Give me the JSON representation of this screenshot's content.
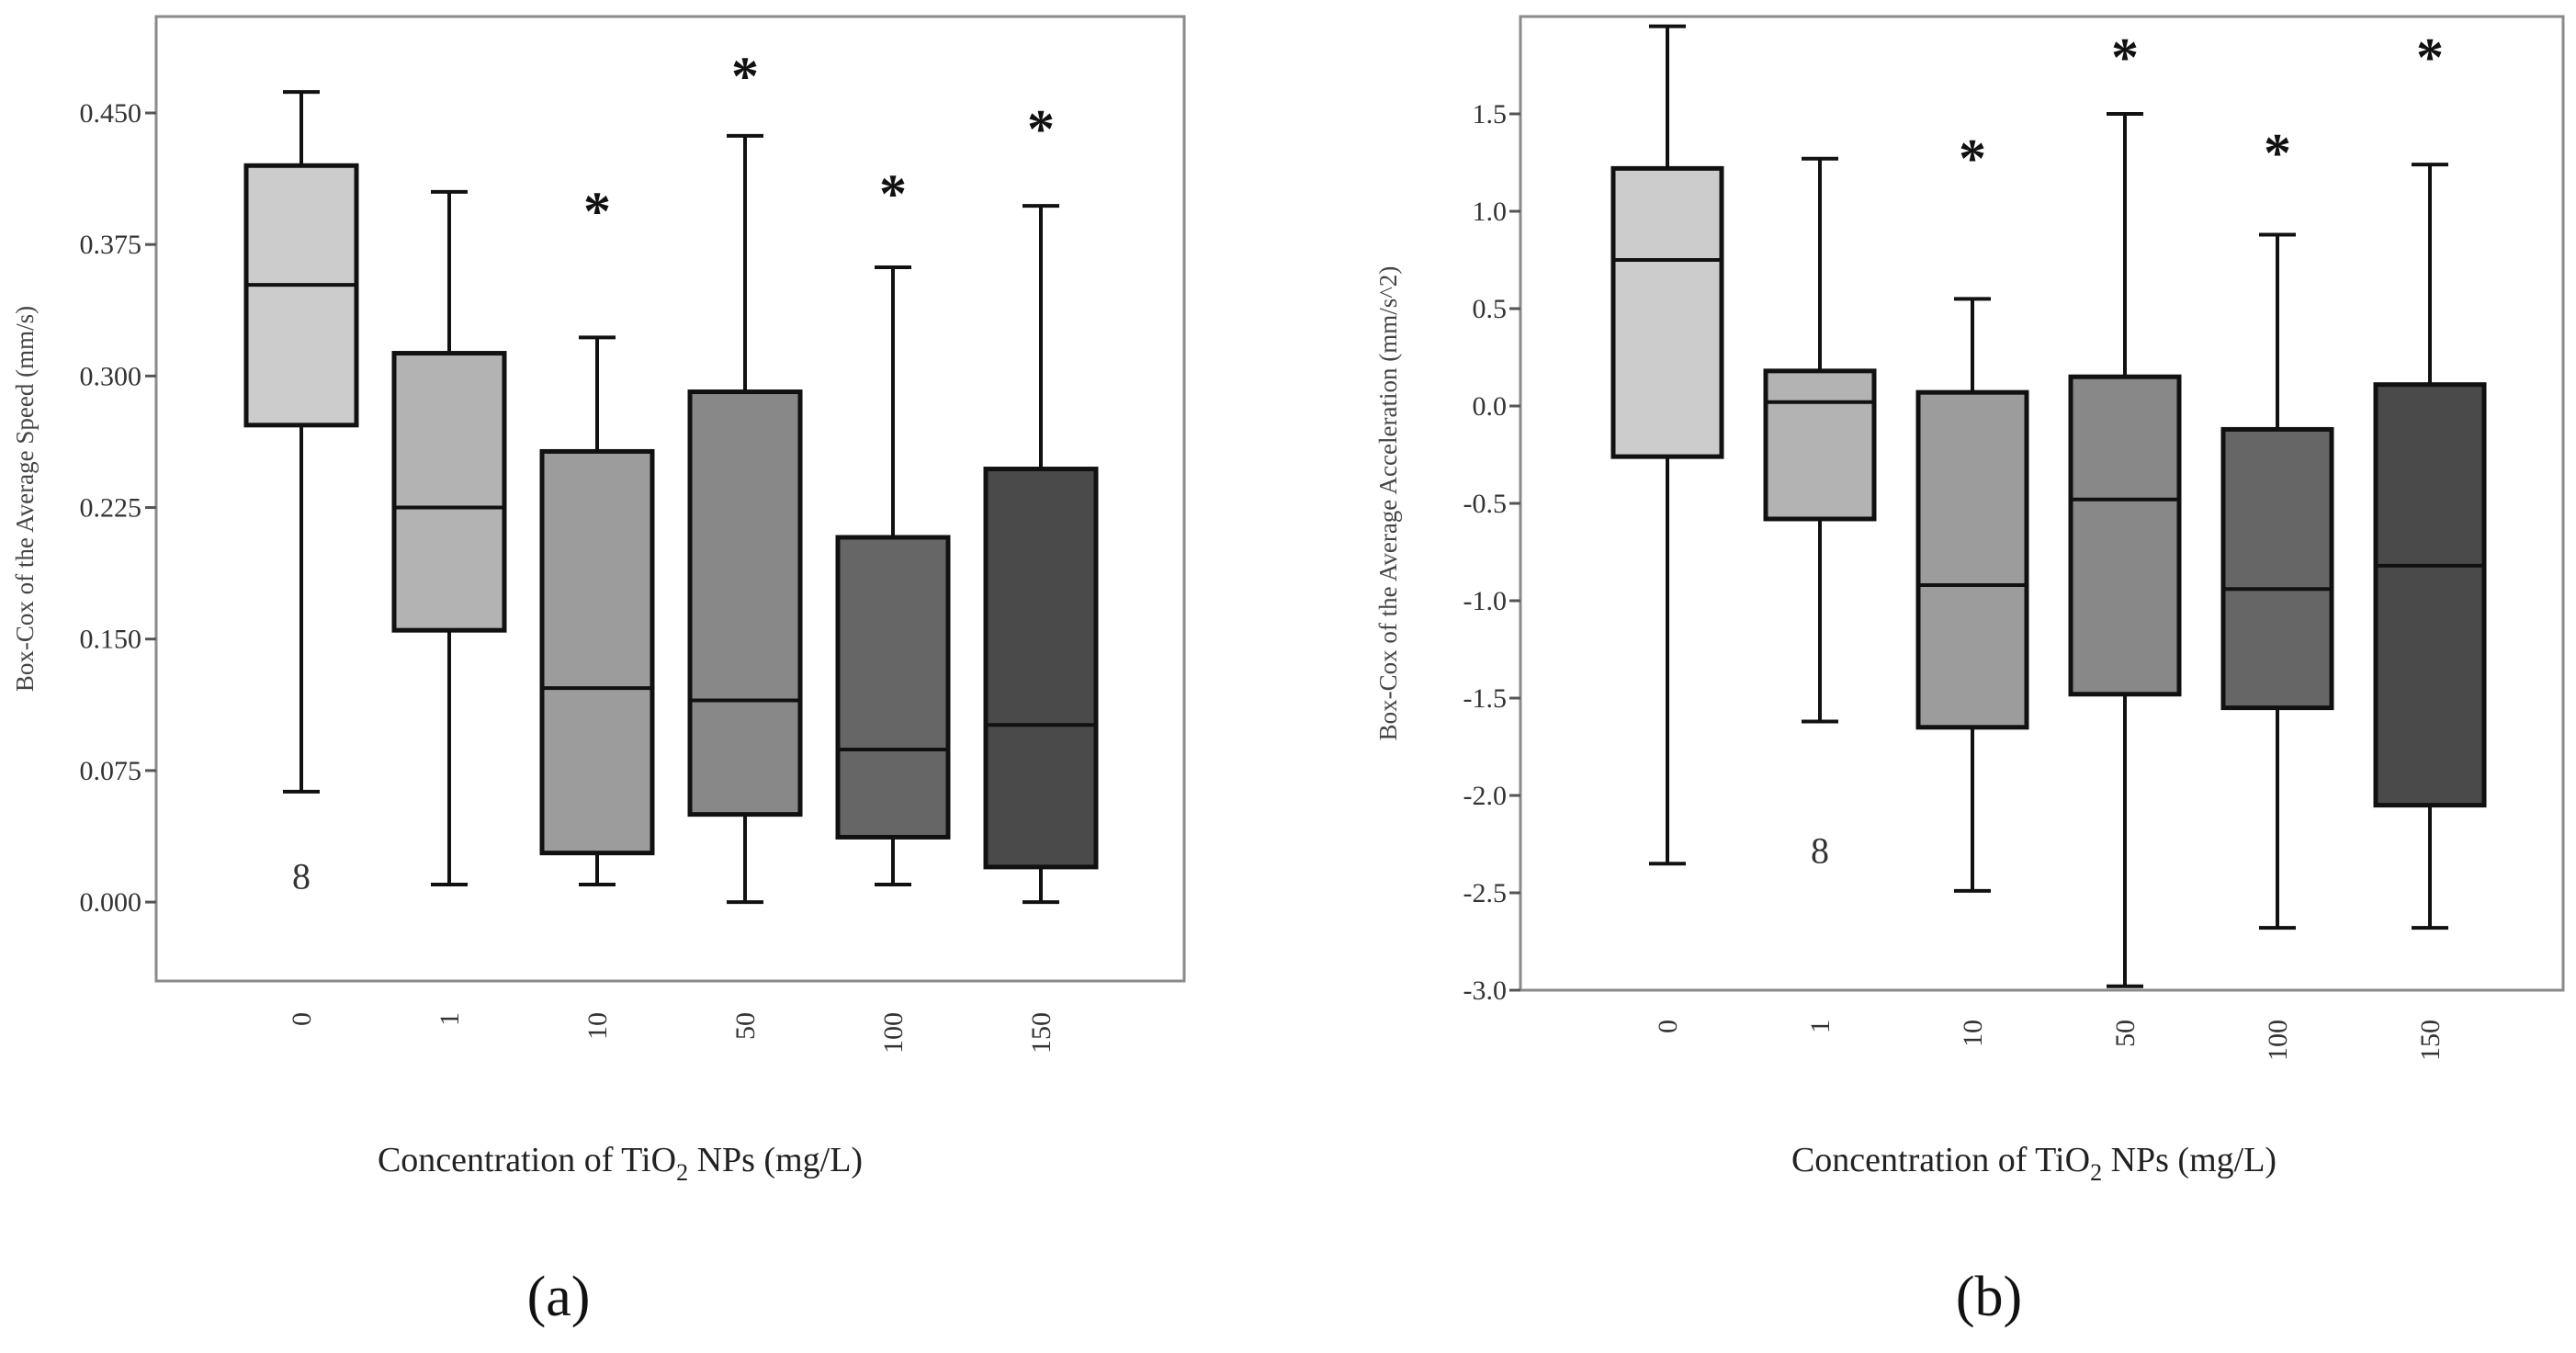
{
  "chart_data": [
    {
      "type": "box",
      "panel_label": "(a)",
      "ylabel": "Box-Cox of the Average Speed (mm/s)",
      "xlabel_parts": [
        "Concentration of TiO",
        "2",
        " NPs (mg/L)"
      ],
      "categories": [
        "0",
        "1",
        "10",
        "50",
        "100",
        "150"
      ],
      "yticks": [
        "0.000",
        "0.075",
        "0.150",
        "0.225",
        "0.300",
        "0.375",
        "0.450"
      ],
      "ylim": [
        -0.045,
        0.505
      ],
      "boxes": [
        {
          "category": "0",
          "whisker_low": 0.063,
          "q1": 0.272,
          "median": 0.352,
          "q3": 0.42,
          "whisker_high": 0.462,
          "fill": "#cccccc"
        },
        {
          "category": "1",
          "whisker_low": 0.01,
          "q1": 0.155,
          "median": 0.225,
          "q3": 0.313,
          "whisker_high": 0.405,
          "fill": "#b3b3b3"
        },
        {
          "category": "10",
          "whisker_low": 0.01,
          "q1": 0.028,
          "median": 0.122,
          "q3": 0.257,
          "whisker_high": 0.322,
          "fill": "#9c9c9c"
        },
        {
          "category": "50",
          "whisker_low": 0.0,
          "q1": 0.05,
          "median": 0.115,
          "q3": 0.291,
          "whisker_high": 0.437,
          "fill": "#888888"
        },
        {
          "category": "100",
          "whisker_low": 0.01,
          "q1": 0.037,
          "median": 0.087,
          "q3": 0.208,
          "whisker_high": 0.362,
          "fill": "#666666"
        },
        {
          "category": "150",
          "whisker_low": 0.0,
          "q1": 0.02,
          "median": 0.101,
          "q3": 0.247,
          "whisker_high": 0.397,
          "fill": "#4a4a4a"
        }
      ],
      "significance": [
        {
          "category": "10",
          "label": "*",
          "y": 0.395
        },
        {
          "category": "50",
          "label": "*",
          "y": 0.472
        },
        {
          "category": "100",
          "label": "*",
          "y": 0.405
        },
        {
          "category": "150",
          "label": "*",
          "y": 0.442
        }
      ],
      "outliers": [
        {
          "category": "0",
          "label": "8",
          "y": 0.015
        }
      ]
    },
    {
      "type": "box",
      "panel_label": "(b)",
      "ylabel": "Box-Cox of the Average Acceleration (mm/s^2)",
      "xlabel_parts": [
        "Concentration of TiO",
        "2",
        " NPs (mg/L)"
      ],
      "categories": [
        "0",
        "1",
        "10",
        "50",
        "100",
        "150"
      ],
      "yticks": [
        "-3.0",
        "-2.5",
        "-2.0",
        "-1.5",
        "-1.0",
        "-0.5",
        "0.0",
        "0.5",
        "1.0",
        "1.5"
      ],
      "ylim": [
        -3.0,
        2.0
      ],
      "boxes": [
        {
          "category": "0",
          "whisker_low": -2.35,
          "q1": -0.26,
          "median": 0.75,
          "q3": 1.22,
          "whisker_high": 1.95,
          "fill": "#cccccc"
        },
        {
          "category": "1",
          "whisker_low": -1.62,
          "q1": -0.58,
          "median": 0.02,
          "q3": 0.18,
          "whisker_high": 1.27,
          "fill": "#b3b3b3"
        },
        {
          "category": "10",
          "whisker_low": -2.49,
          "q1": -1.65,
          "median": -0.92,
          "q3": 0.07,
          "whisker_high": 0.55,
          "fill": "#9c9c9c"
        },
        {
          "category": "50",
          "whisker_low": -2.98,
          "q1": -1.48,
          "median": -0.48,
          "q3": 0.15,
          "whisker_high": 1.5,
          "fill": "#888888"
        },
        {
          "category": "100",
          "whisker_low": -2.68,
          "q1": -1.55,
          "median": -0.94,
          "q3": -0.12,
          "whisker_high": 0.88,
          "fill": "#666666"
        },
        {
          "category": "150",
          "whisker_low": -2.68,
          "q1": -2.05,
          "median": -0.82,
          "q3": 0.11,
          "whisker_high": 1.24,
          "fill": "#4a4a4a"
        }
      ],
      "significance": [
        {
          "category": "10",
          "label": "*",
          "y": 1.28
        },
        {
          "category": "50",
          "label": "*",
          "y": 1.8
        },
        {
          "category": "100",
          "label": "*",
          "y": 1.31
        },
        {
          "category": "150",
          "label": "*",
          "y": 1.8
        }
      ],
      "outliers": [
        {
          "category": "1",
          "label": "8",
          "y": -2.28
        }
      ]
    }
  ]
}
